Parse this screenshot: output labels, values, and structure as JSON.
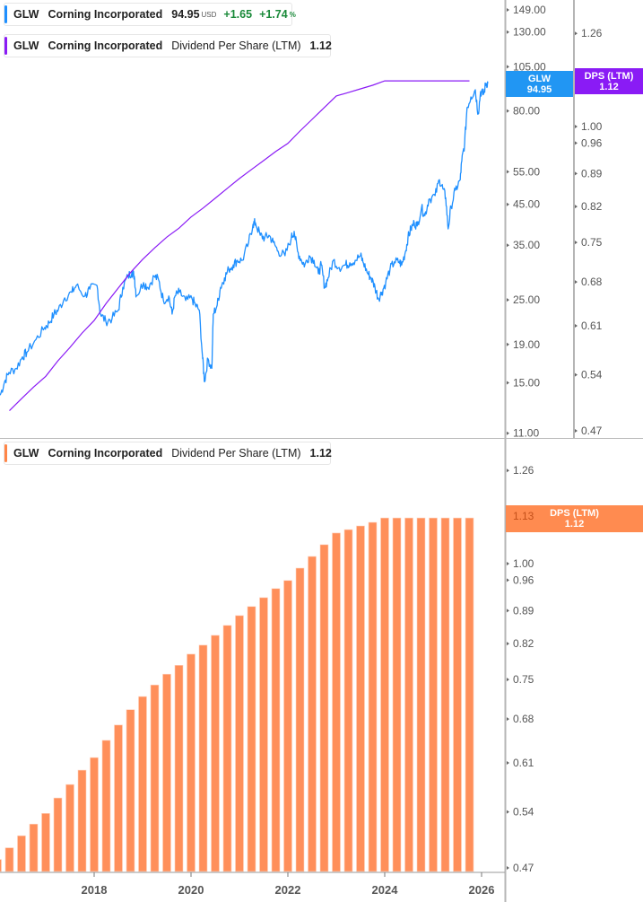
{
  "legend_price": {
    "ticker": "GLW",
    "name": "Corning Incorporated",
    "price": "94.95",
    "currency": "USD",
    "change": "+1.65",
    "change_pct": "+1.74",
    "pct_sign": "%"
  },
  "legend_dps_top": {
    "ticker": "GLW",
    "name": "Corning Incorporated",
    "metric": "Dividend Per Share (LTM)",
    "value": "1.12"
  },
  "legend_dps_bottom": {
    "ticker": "GLW",
    "name": "Corning Incorporated",
    "metric": "Dividend Per Share (LTM)",
    "value": "1.12"
  },
  "tags": {
    "price": {
      "label": "GLW",
      "value": "94.95"
    },
    "dps_top": {
      "label": "DPS (LTM)",
      "value": "1.12"
    },
    "dps_bottom": {
      "label": "DPS (LTM)",
      "value": "1.12",
      "ghost_tick": "1.13"
    }
  },
  "colors": {
    "price": "#1e8fff",
    "dps_line": "#8a1bf5",
    "dps_bars": "#ff8f5a",
    "tag_price": "#2196f3",
    "tag_dps": "#8a1bf5",
    "tag_bars": "#ff8547"
  },
  "chart_data": [
    {
      "type": "line",
      "series": [
        {
          "name": "GLW",
          "values": [
            [
              2016.06,
              13.9
            ],
            [
              2016.15,
              15.1
            ],
            [
              2016.24,
              16.0
            ],
            [
              2016.39,
              16.4
            ],
            [
              2016.52,
              17.6
            ],
            [
              2016.61,
              18.1
            ],
            [
              2016.8,
              19.6
            ],
            [
              2016.98,
              21.1
            ],
            [
              2017.07,
              21.7
            ],
            [
              2017.17,
              22.9
            ],
            [
              2017.26,
              23.5
            ],
            [
              2017.39,
              25.3
            ],
            [
              2017.54,
              26.2
            ],
            [
              2017.63,
              27.3
            ],
            [
              2017.81,
              25.6
            ],
            [
              2017.91,
              26.7
            ],
            [
              2018.06,
              27.3
            ],
            [
              2018.13,
              22.9
            ],
            [
              2018.24,
              21.9
            ],
            [
              2018.37,
              22.3
            ],
            [
              2018.5,
              23.5
            ],
            [
              2018.59,
              27.0
            ],
            [
              2018.7,
              28.9
            ],
            [
              2018.78,
              29.7
            ],
            [
              2018.83,
              28.9
            ],
            [
              2018.87,
              25.6
            ],
            [
              2019.02,
              27.8
            ],
            [
              2019.11,
              27.0
            ],
            [
              2019.24,
              28.9
            ],
            [
              2019.33,
              28.3
            ],
            [
              2019.43,
              24.9
            ],
            [
              2019.54,
              25.6
            ],
            [
              2019.61,
              22.9
            ],
            [
              2019.67,
              25.6
            ],
            [
              2019.76,
              26.2
            ],
            [
              2019.89,
              24.9
            ],
            [
              2020.02,
              25.2
            ],
            [
              2020.09,
              24.2
            ],
            [
              2020.17,
              23.5
            ],
            [
              2020.24,
              17.4
            ],
            [
              2020.28,
              15.1
            ],
            [
              2020.35,
              17.4
            ],
            [
              2020.43,
              16.4
            ],
            [
              2020.46,
              22.9
            ],
            [
              2020.54,
              24.2
            ],
            [
              2020.61,
              27.0
            ],
            [
              2020.69,
              28.6
            ],
            [
              2020.78,
              30.2
            ],
            [
              2020.87,
              31.0
            ],
            [
              2020.96,
              31.9
            ],
            [
              2021.06,
              31.9
            ],
            [
              2021.19,
              35.6
            ],
            [
              2021.28,
              39.8
            ],
            [
              2021.33,
              40.2
            ],
            [
              2021.43,
              37.2
            ],
            [
              2021.52,
              36.6
            ],
            [
              2021.61,
              37.2
            ],
            [
              2021.7,
              35.6
            ],
            [
              2021.8,
              33.7
            ],
            [
              2021.94,
              32.8
            ],
            [
              2022.07,
              36.6
            ],
            [
              2022.13,
              38.1
            ],
            [
              2022.2,
              33.7
            ],
            [
              2022.28,
              31.9
            ],
            [
              2022.35,
              31.0
            ],
            [
              2022.44,
              32.8
            ],
            [
              2022.54,
              31.9
            ],
            [
              2022.63,
              29.4
            ],
            [
              2022.69,
              31.0
            ],
            [
              2022.76,
              27.0
            ],
            [
              2022.83,
              28.6
            ],
            [
              2022.94,
              31.9
            ],
            [
              2023.06,
              30.5
            ],
            [
              2023.19,
              31.0
            ],
            [
              2023.28,
              31.4
            ],
            [
              2023.39,
              31.9
            ],
            [
              2023.5,
              32.8
            ],
            [
              2023.56,
              31.4
            ],
            [
              2023.65,
              29.4
            ],
            [
              2023.72,
              28.6
            ],
            [
              2023.8,
              27.0
            ],
            [
              2023.87,
              25.2
            ],
            [
              2023.94,
              26.2
            ],
            [
              2024.02,
              27.8
            ],
            [
              2024.11,
              30.2
            ],
            [
              2024.2,
              31.6
            ],
            [
              2024.3,
              31.6
            ],
            [
              2024.35,
              31.0
            ],
            [
              2024.43,
              33.7
            ],
            [
              2024.48,
              36.6
            ],
            [
              2024.54,
              38.7
            ],
            [
              2024.61,
              40.2
            ],
            [
              2024.67,
              39.4
            ],
            [
              2024.76,
              44.0
            ],
            [
              2024.83,
              42.0
            ],
            [
              2024.91,
              46.4
            ],
            [
              2025.04,
              47.5
            ],
            [
              2025.13,
              52.4
            ],
            [
              2025.2,
              49.6
            ],
            [
              2025.26,
              46.9
            ],
            [
              2025.31,
              38.7
            ],
            [
              2025.37,
              44.4
            ],
            [
              2025.46,
              49.1
            ],
            [
              2025.56,
              52.4
            ],
            [
              2025.59,
              58.6
            ],
            [
              2025.65,
              65.4
            ],
            [
              2025.7,
              81.6
            ],
            [
              2025.78,
              87.2
            ],
            [
              2025.87,
              91.1
            ],
            [
              2025.93,
              78.5
            ],
            [
              2025.98,
              90.1
            ],
            [
              2026.04,
              88.7
            ],
            [
              2026.09,
              94.7
            ],
            [
              2026.13,
              94.95
            ]
          ]
        }
      ],
      "scale": "log",
      "yticks": [
        "149.00",
        "130.00",
        "105.00",
        "80.00",
        "55.00",
        "45.00",
        "35.00",
        "25.00",
        "19.00",
        "15.00",
        "11.00"
      ],
      "ylim": [
        11,
        149
      ]
    },
    {
      "type": "line",
      "series": [
        {
          "name": "DPS (LTM)"
        }
      ],
      "scale": "log",
      "yticks": [
        "1.26",
        "1.00",
        "0.96",
        "0.89",
        "0.82",
        "0.75",
        "0.68",
        "0.61",
        "0.54",
        "0.47"
      ],
      "ylim": [
        0.47,
        1.26
      ],
      "note_values_from": "bottom bars"
    },
    {
      "type": "bar",
      "x": [
        2016.0,
        2016.25,
        2016.5,
        2016.75,
        2017.0,
        2017.25,
        2017.5,
        2017.75,
        2018.0,
        2018.25,
        2018.5,
        2018.75,
        2019.0,
        2019.25,
        2019.5,
        2019.75,
        2020.0,
        2020.25,
        2020.5,
        2020.75,
        2021.0,
        2021.25,
        2021.5,
        2021.75,
        2022.0,
        2022.25,
        2022.5,
        2022.75,
        2023.0,
        2023.25,
        2023.5,
        2023.75,
        2024.0,
        2024.25,
        2024.5,
        2024.75,
        2025.0,
        2025.25,
        2025.5,
        2025.75
      ],
      "values": [
        0.48,
        0.494,
        0.509,
        0.524,
        0.538,
        0.559,
        0.578,
        0.599,
        0.618,
        0.645,
        0.67,
        0.696,
        0.719,
        0.74,
        0.76,
        0.777,
        0.799,
        0.817,
        0.837,
        0.858,
        0.879,
        0.899,
        0.919,
        0.94,
        0.959,
        0.989,
        1.018,
        1.048,
        1.079,
        1.088,
        1.098,
        1.108,
        1.12,
        1.12,
        1.12,
        1.12,
        1.12,
        1.12,
        1.12,
        1.12
      ],
      "scale": "log",
      "yticks": [
        "1.26",
        "1.00",
        "0.96",
        "0.89",
        "0.82",
        "0.75",
        "0.68",
        "0.61",
        "0.54",
        "0.47"
      ],
      "ylim": [
        0.47,
        1.26
      ],
      "xticks": [
        "2018",
        "2020",
        "2022",
        "2024",
        "2026"
      ]
    }
  ]
}
